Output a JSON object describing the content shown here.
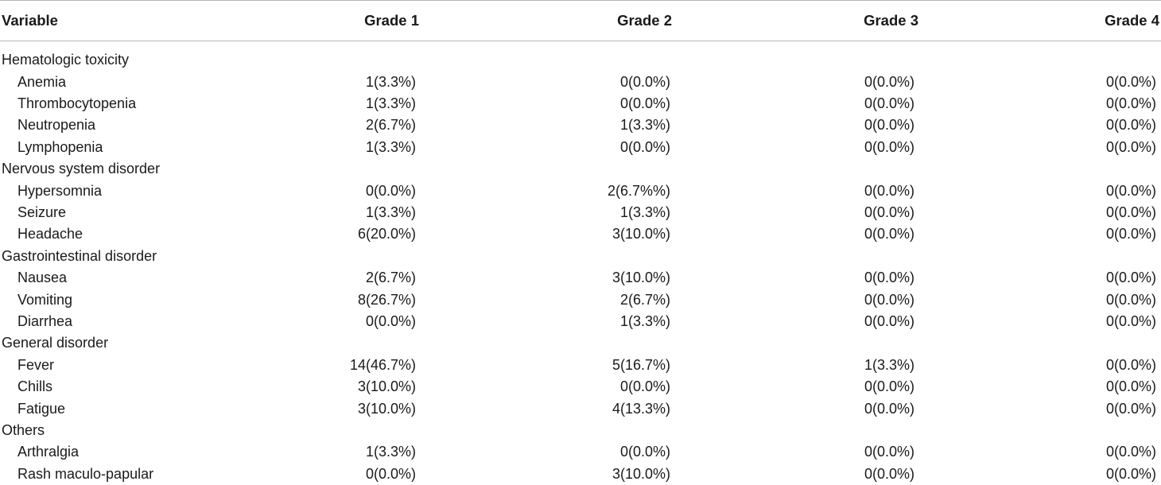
{
  "columns": [
    "Variable",
    "Grade 1",
    "Grade 2",
    "Grade 3",
    "Grade 4"
  ],
  "rows": [
    {
      "type": "category",
      "label": "Hematologic toxicity"
    },
    {
      "type": "item",
      "label": "Anemia",
      "values": [
        "1(3.3%)",
        "0(0.0%)",
        "0(0.0%)",
        "0(0.0%)"
      ]
    },
    {
      "type": "item",
      "label": "Thrombocytopenia",
      "values": [
        "1(3.3%)",
        "0(0.0%)",
        "0(0.0%)",
        "0(0.0%)"
      ]
    },
    {
      "type": "item",
      "label": "Neutropenia",
      "values": [
        "2(6.7%)",
        "1(3.3%)",
        "0(0.0%)",
        "0(0.0%)"
      ]
    },
    {
      "type": "item",
      "label": "Lymphopenia",
      "values": [
        "1(3.3%)",
        "0(0.0%)",
        "0(0.0%)",
        "0(0.0%)"
      ]
    },
    {
      "type": "category",
      "label": "Nervous system disorder"
    },
    {
      "type": "item",
      "label": "Hypersomnia",
      "values": [
        "0(0.0%)",
        "2(6.7%%)",
        "0(0.0%)",
        "0(0.0%)"
      ]
    },
    {
      "type": "item",
      "label": "Seizure",
      "values": [
        "1(3.3%)",
        "1(3.3%)",
        "0(0.0%)",
        "0(0.0%)"
      ]
    },
    {
      "type": "item",
      "label": "Headache",
      "values": [
        "6(20.0%)",
        "3(10.0%)",
        "0(0.0%)",
        "0(0.0%)"
      ]
    },
    {
      "type": "category",
      "label": "Gastrointestinal disorder"
    },
    {
      "type": "item",
      "label": "Nausea",
      "values": [
        "2(6.7%)",
        "3(10.0%)",
        "0(0.0%)",
        "0(0.0%)"
      ]
    },
    {
      "type": "item",
      "label": "Vomiting",
      "values": [
        "8(26.7%)",
        "2(6.7%)",
        "0(0.0%)",
        "0(0.0%)"
      ]
    },
    {
      "type": "item",
      "label": "Diarrhea",
      "values": [
        "0(0.0%)",
        "1(3.3%)",
        "0(0.0%)",
        "0(0.0%)"
      ]
    },
    {
      "type": "category",
      "label": "General disorder"
    },
    {
      "type": "item",
      "label": "Fever",
      "values": [
        "14(46.7%)",
        "5(16.7%)",
        "1(3.3%)",
        "0(0.0%)"
      ]
    },
    {
      "type": "item",
      "label": "Chills",
      "values": [
        "3(10.0%)",
        "0(0.0%)",
        "0(0.0%)",
        "0(0.0%)"
      ]
    },
    {
      "type": "item",
      "label": "Fatigue",
      "values": [
        "3(10.0%)",
        "4(13.3%)",
        "0(0.0%)",
        "0(0.0%)"
      ]
    },
    {
      "type": "category",
      "label": "Others"
    },
    {
      "type": "item",
      "label": "Arthralgia",
      "values": [
        "1(3.3%)",
        "0(0.0%)",
        "0(0.0%)",
        "0(0.0%)"
      ]
    },
    {
      "type": "item",
      "label": "Rash maculo-papular",
      "values": [
        "0(0.0%)",
        "3(10.0%)",
        "0(0.0%)",
        "0(0.0%)"
      ]
    }
  ]
}
